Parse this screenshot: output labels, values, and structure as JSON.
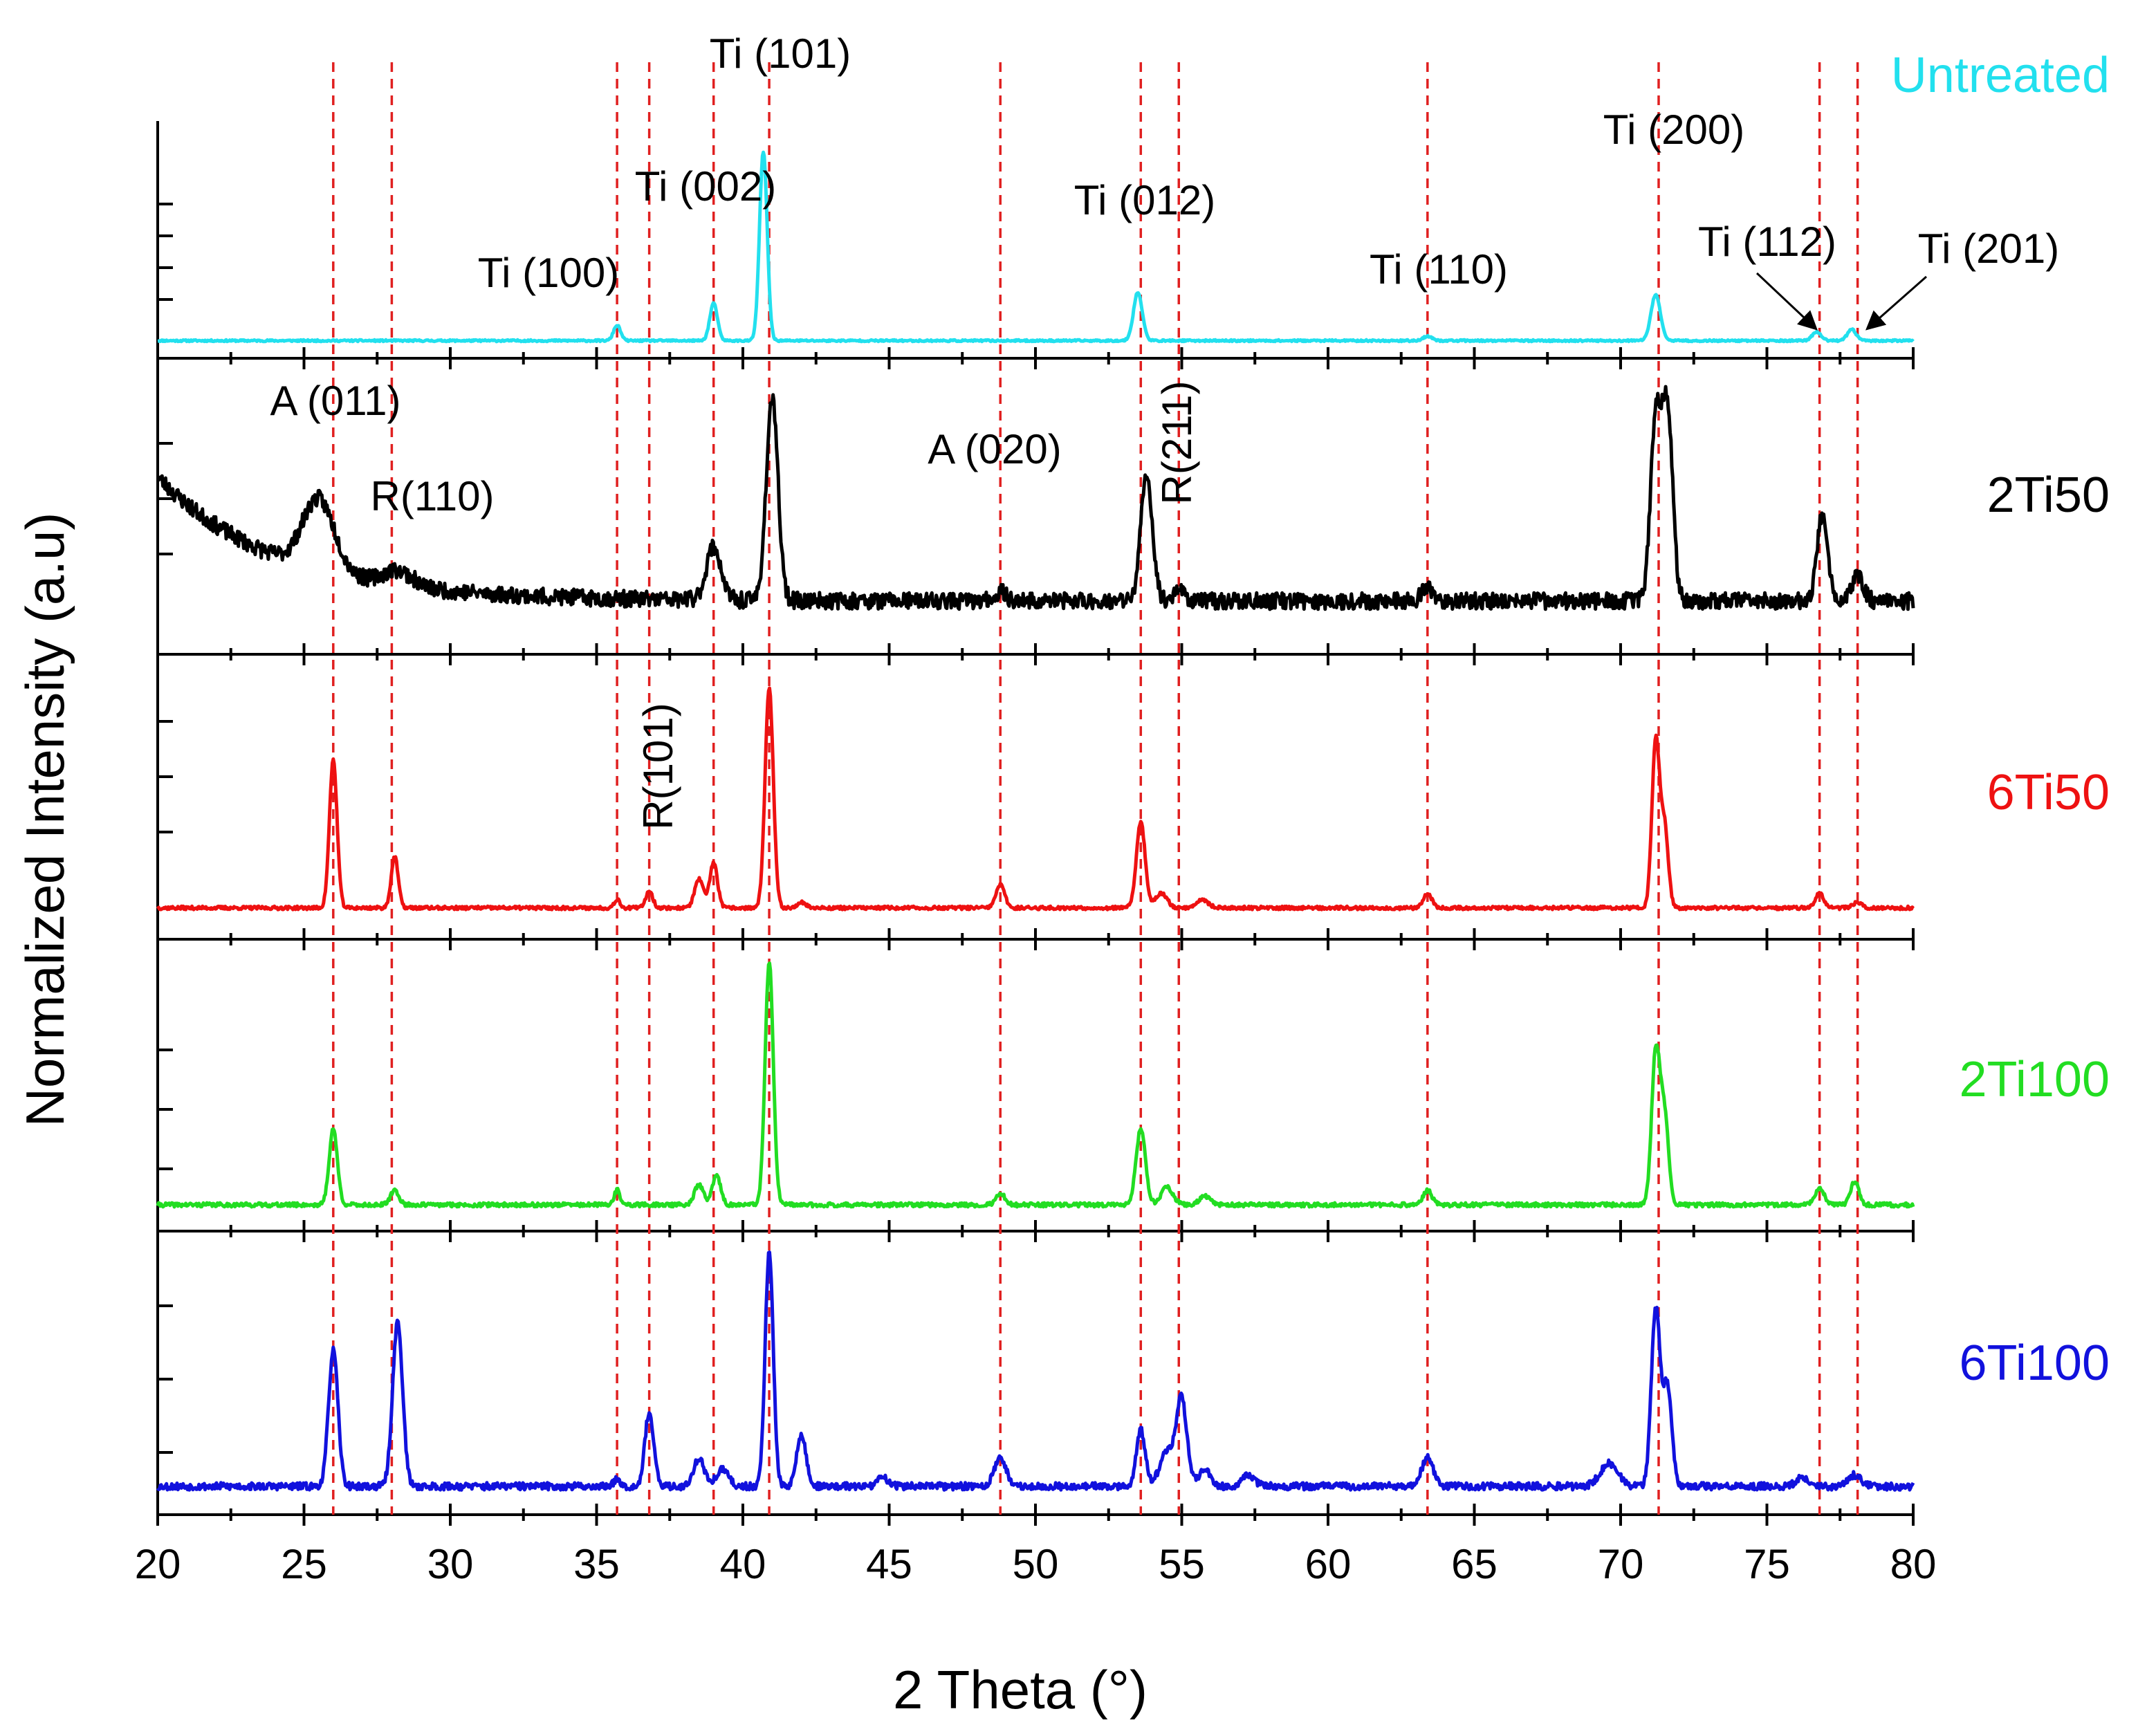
{
  "chart_data": {
    "type": "line",
    "title": "",
    "xlabel": "2 Theta (°)",
    "ylabel": "Normalized Intensity (a.u)",
    "xlim": [
      20,
      80
    ],
    "xticks": [
      20,
      25,
      30,
      35,
      40,
      45,
      50,
      55,
      60,
      65,
      70,
      75,
      80
    ],
    "tick_labels": [
      "20",
      "25",
      "30",
      "35",
      "40",
      "45",
      "50",
      "55",
      "60",
      "65",
      "70",
      "75",
      "80"
    ],
    "reference_lines": [
      26.0,
      28.0,
      35.7,
      36.8,
      39.0,
      40.9,
      48.8,
      53.6,
      54.9,
      63.4,
      71.3,
      76.8,
      78.1
    ],
    "series": [
      {
        "name": "Untreated",
        "color": "#22e0ee",
        "baseline": 0.08,
        "noise": 0.004,
        "seed": 11,
        "peaks": [
          [
            35.7,
            0.07,
            0.12
          ],
          [
            39.0,
            0.17,
            0.13
          ],
          [
            40.7,
            0.86,
            0.13
          ],
          [
            53.5,
            0.22,
            0.15
          ],
          [
            63.4,
            0.02,
            0.15
          ],
          [
            71.2,
            0.21,
            0.16
          ],
          [
            76.7,
            0.04,
            0.15
          ],
          [
            77.9,
            0.05,
            0.15
          ]
        ]
      },
      {
        "name": "2Ti50",
        "color": "#000000",
        "baseline": 0.18,
        "noise": 0.028,
        "seed": 23,
        "background": {
          "amp": 0.42,
          "decay": 4.0,
          "start": 20
        },
        "peaks": [
          [
            25.5,
            0.24,
            0.55
          ],
          [
            28.2,
            0.05,
            0.5
          ],
          [
            39.0,
            0.18,
            0.25
          ],
          [
            41.0,
            0.68,
            0.2
          ],
          [
            48.8,
            0.03,
            0.2
          ],
          [
            53.8,
            0.42,
            0.2
          ],
          [
            54.9,
            0.04,
            0.2
          ],
          [
            63.4,
            0.04,
            0.2
          ],
          [
            71.2,
            0.6,
            0.18
          ],
          [
            71.6,
            0.65,
            0.18
          ],
          [
            76.9,
            0.3,
            0.18
          ],
          [
            78.1,
            0.08,
            0.2
          ]
        ]
      },
      {
        "name": "6Ti50",
        "color": "#ee1111",
        "baseline": 0.11,
        "noise": 0.006,
        "seed": 37,
        "peaks": [
          [
            26.0,
            0.52,
            0.13
          ],
          [
            28.1,
            0.18,
            0.12
          ],
          [
            35.7,
            0.03,
            0.1
          ],
          [
            36.8,
            0.06,
            0.12
          ],
          [
            38.5,
            0.1,
            0.15
          ],
          [
            39.0,
            0.16,
            0.13
          ],
          [
            40.9,
            0.77,
            0.14
          ],
          [
            42.0,
            0.02,
            0.15
          ],
          [
            48.8,
            0.08,
            0.15
          ],
          [
            53.6,
            0.3,
            0.15
          ],
          [
            54.3,
            0.05,
            0.2
          ],
          [
            55.7,
            0.03,
            0.2
          ],
          [
            63.4,
            0.05,
            0.15
          ],
          [
            71.2,
            0.58,
            0.13
          ],
          [
            71.5,
            0.28,
            0.13
          ],
          [
            76.8,
            0.05,
            0.15
          ],
          [
            78.1,
            0.02,
            0.15
          ]
        ]
      },
      {
        "name": "2Ti100",
        "color": "#22dd22",
        "baseline": 0.09,
        "noise": 0.007,
        "seed": 41,
        "peaks": [
          [
            26.0,
            0.26,
            0.14
          ],
          [
            28.1,
            0.05,
            0.14
          ],
          [
            35.7,
            0.05,
            0.1
          ],
          [
            38.5,
            0.07,
            0.15
          ],
          [
            39.1,
            0.1,
            0.14
          ],
          [
            40.9,
            0.83,
            0.14
          ],
          [
            48.8,
            0.04,
            0.15
          ],
          [
            53.6,
            0.26,
            0.16
          ],
          [
            54.5,
            0.06,
            0.2
          ],
          [
            55.8,
            0.03,
            0.2
          ],
          [
            63.4,
            0.05,
            0.15
          ],
          [
            71.2,
            0.52,
            0.14
          ],
          [
            71.5,
            0.3,
            0.14
          ],
          [
            76.8,
            0.06,
            0.15
          ],
          [
            78.0,
            0.08,
            0.14
          ]
        ]
      },
      {
        "name": "6Ti100",
        "color": "#1111dd",
        "baseline": 0.1,
        "noise": 0.013,
        "seed": 53,
        "peaks": [
          [
            26.0,
            0.48,
            0.16
          ],
          [
            28.2,
            0.58,
            0.17
          ],
          [
            35.7,
            0.03,
            0.1
          ],
          [
            36.8,
            0.26,
            0.15
          ],
          [
            38.5,
            0.1,
            0.18
          ],
          [
            39.3,
            0.06,
            0.2
          ],
          [
            40.9,
            0.82,
            0.14
          ],
          [
            42.0,
            0.18,
            0.16
          ],
          [
            44.8,
            0.03,
            0.2
          ],
          [
            48.8,
            0.1,
            0.2
          ],
          [
            53.6,
            0.2,
            0.15
          ],
          [
            54.5,
            0.12,
            0.25
          ],
          [
            55.0,
            0.3,
            0.18
          ],
          [
            55.8,
            0.06,
            0.2
          ],
          [
            57.3,
            0.04,
            0.2
          ],
          [
            63.4,
            0.1,
            0.2
          ],
          [
            69.6,
            0.08,
            0.3
          ],
          [
            71.2,
            0.62,
            0.15
          ],
          [
            71.6,
            0.35,
            0.15
          ],
          [
            76.2,
            0.03,
            0.2
          ],
          [
            78.0,
            0.04,
            0.2
          ]
        ]
      }
    ],
    "sample_labels": [
      "Untreated",
      "2Ti50",
      "6Ti50",
      "2Ti100",
      "6Ti100"
    ],
    "peak_annotations": [
      {
        "text": "Ti (101)",
        "x": 40.9,
        "panel": 0
      },
      {
        "text": "Ti (002)",
        "x": 39.0,
        "panel": 0
      },
      {
        "text": "Ti (100)",
        "x": 35.7,
        "panel": 0
      },
      {
        "text": "Ti (012)",
        "x": 53.6,
        "panel": 0
      },
      {
        "text": "Ti (110)",
        "x": 63.4,
        "panel": 0
      },
      {
        "text": "Ti (200)",
        "x": 71.3,
        "panel": 0
      },
      {
        "text": "Ti (112)",
        "x": 76.8,
        "panel": 0
      },
      {
        "text": "Ti (201)",
        "x": 78.1,
        "panel": 0
      },
      {
        "text": "A (011)",
        "x": 26.0,
        "panel": 1
      },
      {
        "text": "R(110)",
        "x": 28.0,
        "panel": 1
      },
      {
        "text": "A (020)",
        "x": 48.8,
        "panel": 1
      },
      {
        "text": "R(211)",
        "x": 54.9,
        "panel": 1
      },
      {
        "text": "R(101)",
        "x": 36.8,
        "panel": 2
      }
    ],
    "legend": "right of each panel"
  }
}
